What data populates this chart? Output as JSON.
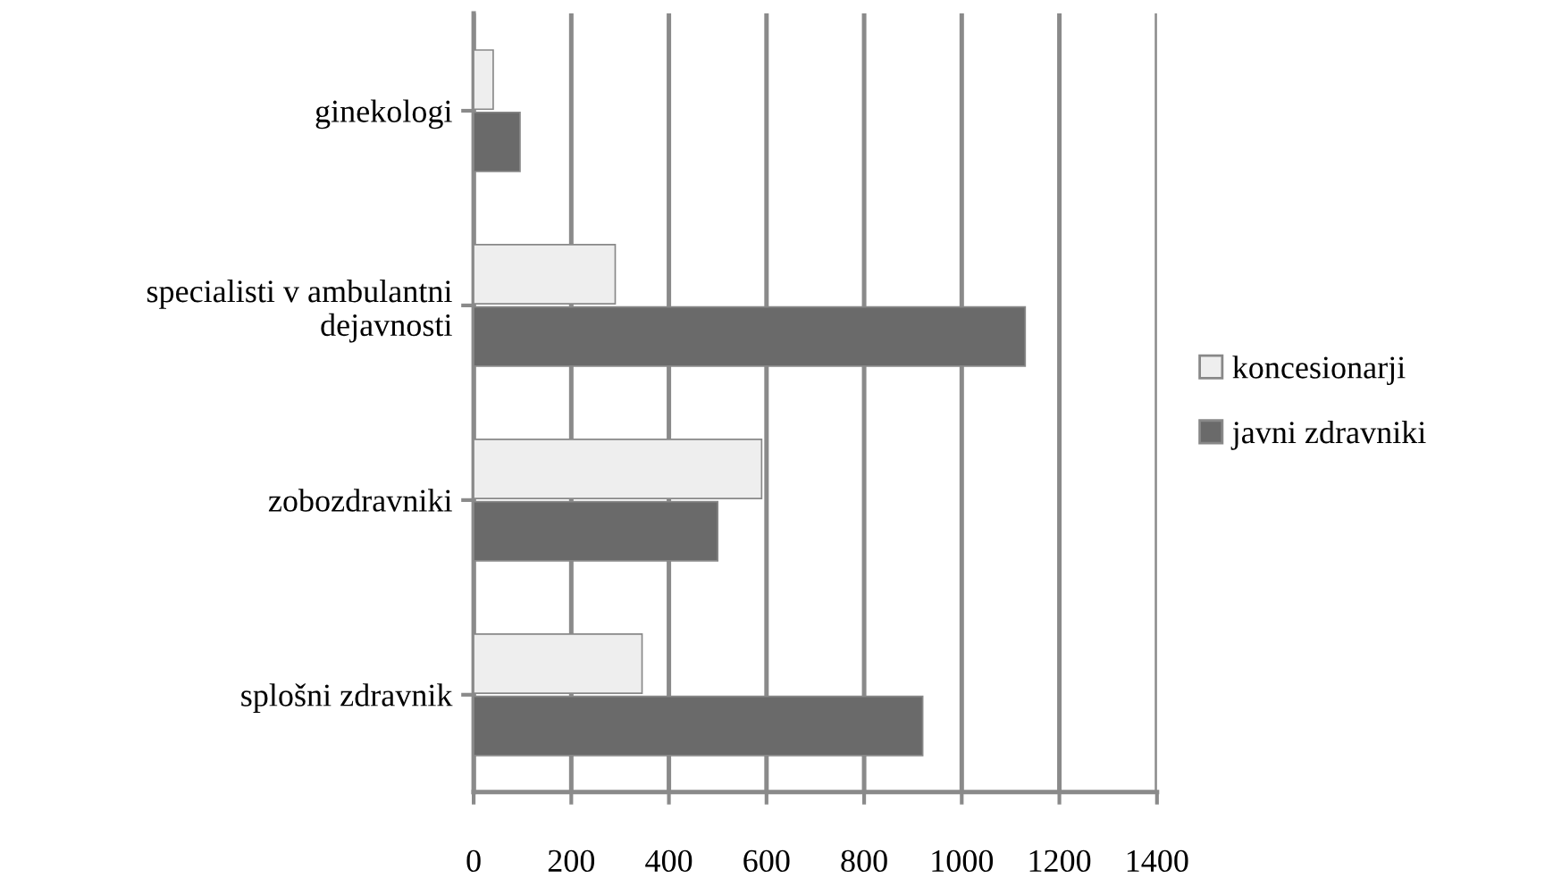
{
  "chart_data": {
    "type": "bar",
    "orientation": "horizontal",
    "categories": [
      "ginekologi",
      "specialisti v ambulantni\ndejavnosti",
      "zobozdravniki",
      "splošni zdravnik"
    ],
    "series": [
      {
        "name": "koncesionarji",
        "color": "#eeeeee",
        "values": [
          40,
          290,
          590,
          345
        ]
      },
      {
        "name": "javni zdravniki",
        "color": "#6a6a6a",
        "values": [
          95,
          1130,
          500,
          920
        ]
      }
    ],
    "xlim": [
      0,
      1400
    ],
    "xticks": [
      0,
      200,
      400,
      600,
      800,
      1000,
      1200,
      1400
    ],
    "grid": "x",
    "legend": "right"
  }
}
